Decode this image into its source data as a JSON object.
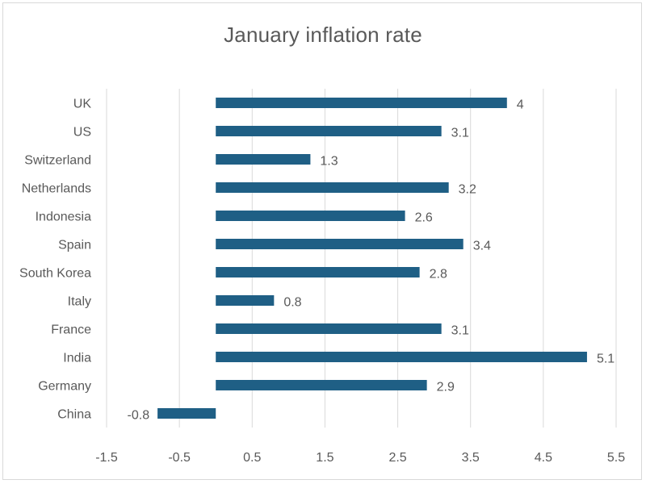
{
  "chart_data": {
    "type": "bar",
    "orientation": "horizontal",
    "title": "January inflation rate",
    "categories": [
      "China",
      "Germany",
      "India",
      "France",
      "Italy",
      "South Korea",
      "Spain",
      "Indonesia",
      "Netherlands",
      "Switzerland",
      "US",
      "UK"
    ],
    "values": [
      -0.8,
      2.9,
      5.1,
      3.1,
      0.8,
      2.8,
      3.4,
      2.6,
      3.2,
      1.3,
      3.1,
      4
    ],
    "data_labels": [
      "-0.8",
      "2.9",
      "5.1",
      "3.1",
      "0.8",
      "2.8",
      "3.4",
      "2.6",
      "3.2",
      "1.3",
      "3.1",
      "4"
    ],
    "x_ticks": [
      -1.5,
      -0.5,
      0.5,
      1.5,
      2.5,
      3.5,
      4.5,
      5.5
    ],
    "x_tick_labels": [
      "-1.5",
      "-0.5",
      "0.5",
      "1.5",
      "2.5",
      "3.5",
      "4.5",
      "5.5"
    ],
    "xlim": [
      -1.5,
      5.5
    ],
    "grid": "vertical",
    "legend": "none",
    "bar_color": "#1f5f85",
    "grid_color": "#d9d9d9",
    "text_color": "#595959"
  }
}
